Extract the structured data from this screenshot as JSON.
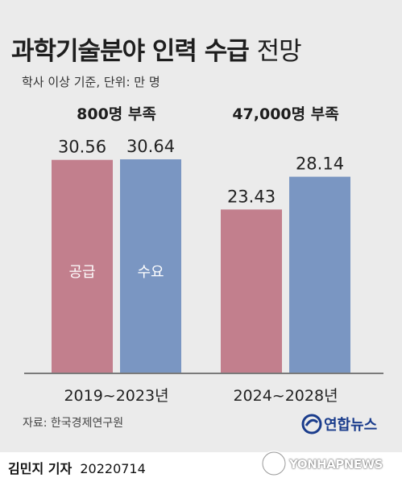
{
  "header": {
    "title_bold": "과학기술분야 인력 수급",
    "title_light": "전망",
    "subtitle": "학사 이상 기준, 단위: 만 명"
  },
  "chart_data": {
    "type": "bar",
    "categories": [
      "2019~2023년",
      "2024~2028년"
    ],
    "series": [
      {
        "name": "공급",
        "values": [
          30.56,
          23.43
        ],
        "color": "#c27f8d"
      },
      {
        "name": "수요",
        "values": [
          30.64,
          28.14
        ],
        "color": "#7a96c2"
      }
    ],
    "value_labels": [
      [
        "30.56",
        "23.43"
      ],
      [
        "30.64",
        "28.14"
      ]
    ],
    "group_annotations": [
      "800명 부족",
      "47,000명 부족"
    ],
    "ylim": [
      0,
      30.64
    ],
    "baseline_color": "#555555",
    "grid": false,
    "legend": "inside-bars"
  },
  "footer": {
    "source": "자료: 한국경제연구원",
    "logo_text": "연합뉴스",
    "byline_name": "김민지 기자",
    "byline_date": "20220714",
    "watermark": "YONHAPNEWS"
  }
}
